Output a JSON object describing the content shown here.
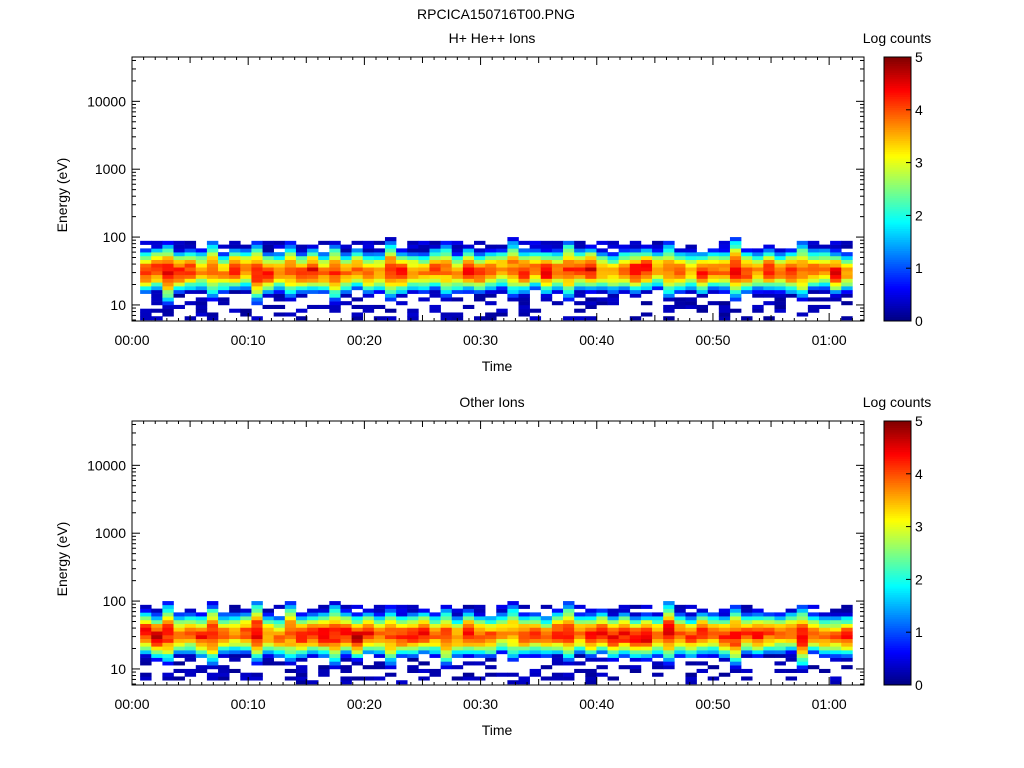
{
  "figure_title": "RPCICA150716T00.PNG",
  "chart_data": [
    {
      "type": "heatmap",
      "title": "H+ He++ Ions",
      "xlabel": "Time",
      "ylabel": "Energy (eV)",
      "x_ticks": [
        "00:00",
        "00:10",
        "00:20",
        "00:30",
        "00:40",
        "00:50",
        "01:00"
      ],
      "x_range_minutes": [
        0,
        63
      ],
      "y_scale": "log",
      "y_ticks": [
        "10",
        "100",
        "1000",
        "10000"
      ],
      "y_range": [
        5.8,
        45000
      ],
      "data_time_range_minutes": [
        0.7,
        62
      ],
      "data_energy_range_ev": [
        6,
        100
      ],
      "peak_energy_ev": 32,
      "peak_log_counts": 4.5,
      "colorbar": {
        "label": "Log counts",
        "range": [
          0,
          5
        ],
        "ticks": [
          "0",
          "1",
          "2",
          "3",
          "4",
          "5"
        ]
      }
    },
    {
      "type": "heatmap",
      "title": "Other Ions",
      "xlabel": "Time",
      "ylabel": "Energy (eV)",
      "x_ticks": [
        "00:00",
        "00:10",
        "00:20",
        "00:30",
        "00:40",
        "00:50",
        "01:00"
      ],
      "x_range_minutes": [
        0,
        63
      ],
      "y_scale": "log",
      "y_ticks": [
        "10",
        "100",
        "1000",
        "10000"
      ],
      "y_range": [
        5.8,
        45000
      ],
      "data_time_range_minutes": [
        0.7,
        62
      ],
      "data_energy_range_ev": [
        6,
        100
      ],
      "peak_energy_ev": 32,
      "peak_log_counts": 4.6,
      "colorbar": {
        "label": "Log counts",
        "range": [
          0,
          5
        ],
        "ticks": [
          "0",
          "1",
          "2",
          "3",
          "4",
          "5"
        ]
      }
    }
  ]
}
